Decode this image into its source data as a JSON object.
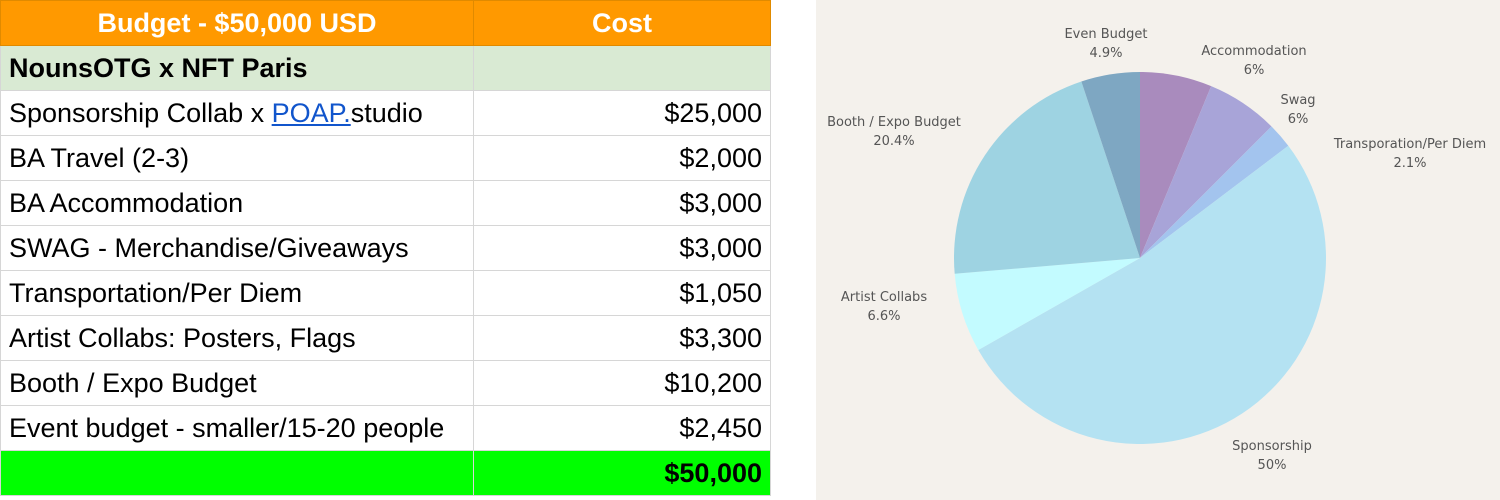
{
  "table": {
    "header": {
      "label": "Budget - $50,000 USD",
      "cost": "Cost"
    },
    "section": {
      "label": "NounsOTG x NFT Paris"
    },
    "rows": [
      {
        "label_pre": "Sponsorship Collab x ",
        "label_link": "POAP.",
        "label_post": "studio",
        "cost": "$25,000"
      },
      {
        "label": "BA Travel (2-3)",
        "cost": "$2,000"
      },
      {
        "label": "BA Accommodation",
        "cost": "$3,000"
      },
      {
        "label": "SWAG - Merchandise/Giveaways",
        "cost": "$3,000"
      },
      {
        "label": "Transportation/Per Diem",
        "cost": "$1,050"
      },
      {
        "label": "Artist Collabs: Posters, Flags",
        "cost": "$3,300"
      },
      {
        "label": "Booth / Expo Budget",
        "cost": "$10,200"
      },
      {
        "label": "Event budget - smaller/15-20 people",
        "cost": "$2,450"
      }
    ],
    "total": {
      "label": "",
      "cost": "$50,000"
    }
  },
  "colors": {
    "header_bg": "#ff9900",
    "section_bg": "#d9ead3",
    "total_bg": "#00ff00",
    "link": "#1155cc",
    "chart_bg": "#f4f1ec"
  },
  "chart_data": {
    "type": "pie",
    "title": "",
    "start": "top",
    "direction": "clockwise",
    "slices": [
      {
        "label": "Accommodation",
        "value_text": "6%",
        "value": 6,
        "color": "#a98bbd"
      },
      {
        "label": "Swag",
        "value_text": "6%",
        "value": 6,
        "color": "#a8a4d8"
      },
      {
        "label": "Transporation/Per Diem",
        "value_text": "2.1%",
        "value": 2.1,
        "color": "#a3c4ee"
      },
      {
        "label": "Sponsorship",
        "value_text": "50%",
        "value": 50,
        "color": "#b4e2f2"
      },
      {
        "label": "Artist Collabs",
        "value_text": "6.6%",
        "value": 6.6,
        "color": "#c3fbff"
      },
      {
        "label": "Booth / Expo Budget",
        "value_text": "20.4%",
        "value": 20.4,
        "color": "#9ed3e2"
      },
      {
        "label": "Even Budget",
        "value_text": "4.9%",
        "value": 4.9,
        "color": "#7ea7c2"
      }
    ]
  }
}
